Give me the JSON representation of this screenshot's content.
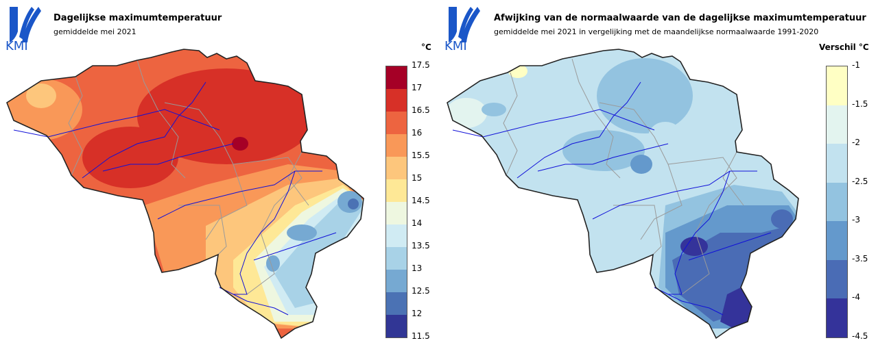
{
  "brand": {
    "name": "KMI"
  },
  "left_map": {
    "title": "Dagelijkse maximumtemperatuur",
    "subtitle": "gemiddelde mei 2021",
    "unit": "°C",
    "legend": {
      "ticks": [
        "17.5",
        "17",
        "16.5",
        "16",
        "15.5",
        "15",
        "14.5",
        "14",
        "13.5",
        "13",
        "12.5",
        "12",
        "11.5"
      ],
      "colors": [
        "#a50026",
        "#d73027",
        "#ed6440",
        "#f99858",
        "#fdc67c",
        "#fee896",
        "#eef7e0",
        "#d0ebf3",
        "#a8d2e7",
        "#76a9d2",
        "#4b72b4",
        "#313695"
      ]
    }
  },
  "right_map": {
    "title": "Afwijking van de normaalwaarde van de dagelijkse maximumtemperatuur",
    "subtitle": "gemiddelde mei 2021 in vergelijking met de maandelijkse normaalwaarde 1991-2020",
    "unit": "Verschil °C",
    "legend": {
      "ticks": [
        "-1",
        "-1.5",
        "-2",
        "-2.5",
        "-3",
        "-3.5",
        "-4",
        "-4.5"
      ],
      "colors": [
        "#ffffc4",
        "#e3f4ef",
        "#c2e2ef",
        "#93c3e0",
        "#6499cc",
        "#4a6cb5",
        "#34339a"
      ]
    }
  }
}
